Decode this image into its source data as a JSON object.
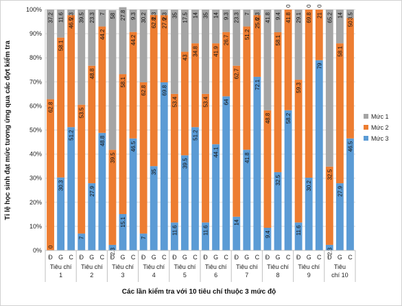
{
  "chart_data": {
    "type": "bar",
    "stacked": true,
    "ylabel": "Tỉ lệ học sinh đạt mức tương ứng qua các đợt kiểm tra",
    "xlabel": "Các lần kiểm tra với 10 tiêu chí thuộc 3 mức độ",
    "ylim": [
      0,
      100
    ],
    "y_ticks": [
      "0%",
      "10%",
      "20%",
      "30%",
      "40%",
      "50%",
      "60%",
      "70%",
      "80%",
      "90%",
      "100%"
    ],
    "grid": true,
    "legend_position": "right",
    "categories": [
      "Đ",
      "G",
      "C",
      "Đ",
      "G",
      "C",
      "Đ",
      "G",
      "C",
      "Đ",
      "G",
      "C",
      "Đ",
      "G",
      "C",
      "Đ",
      "G",
      "C",
      "Đ",
      "G",
      "C",
      "Đ",
      "G",
      "C",
      "Đ",
      "G",
      "C",
      "Đ",
      "G",
      "C"
    ],
    "groups": [
      {
        "line1": "Tiêu chí",
        "line2": "1"
      },
      {
        "line1": "Tiêu chí",
        "line2": "2"
      },
      {
        "line1": "Tiêu chí",
        "line2": "3"
      },
      {
        "line1": "Tiêu chí",
        "line2": "4"
      },
      {
        "line1": "Tiêu chí",
        "line2": "5"
      },
      {
        "line1": "Tiêu chí",
        "line2": "6"
      },
      {
        "line1": "Tiêu chí",
        "line2": "7"
      },
      {
        "line1": "Tiêu chí",
        "line2": "8"
      },
      {
        "line1": "Tiêu chí",
        "line2": "9"
      },
      {
        "line1": "Tiêu",
        "line2": "chí 10"
      }
    ],
    "series": [
      {
        "name": "Mức 3",
        "color": "#5b9bd5",
        "values": [
          0,
          30.3,
          51.2,
          7,
          27.9,
          48.8,
          2.3,
          15.1,
          46.5,
          7,
          35,
          69.8,
          11.6,
          39.5,
          51.2,
          11.6,
          44.1,
          64,
          14,
          41.8,
          72.1,
          9.4,
          32.5,
          58.2,
          11.6,
          30.2,
          79,
          2.3,
          27.9,
          46.5
        ],
        "labels": [
          "0",
          "30.3",
          "51.2",
          "7",
          "27.9",
          "48.8",
          "2.3",
          "15.1",
          "46.5",
          "7",
          "35",
          "69.8",
          "11.6",
          "39.5",
          "51.2",
          "11.6",
          "44.1",
          "64",
          "14",
          "41.8",
          "72.1",
          "9.4",
          "32.5",
          "58.2",
          "11.6",
          "30.2",
          "79",
          "2.3",
          "27.9",
          "46.5"
        ]
      },
      {
        "name": "Mức 2",
        "color": "#ed7d31",
        "values": [
          62.8,
          58.1,
          46.5,
          53.5,
          48.8,
          44.2,
          39.5,
          58.1,
          44.2,
          62.8,
          62.8,
          27.9,
          53.4,
          43,
          34.8,
          53.4,
          41.9,
          26.7,
          62.7,
          51.2,
          25.6,
          48.8,
          58.1,
          41.8,
          59.3,
          69.8,
          21,
          32.5,
          58.1,
          50
        ],
        "labels": [
          "62.8",
          "58.1",
          "46.5",
          "53.5",
          "48.8",
          "44.2",
          "39.5",
          "58.1",
          "44.2",
          "62.8",
          "62.8",
          "27.9",
          "53.4",
          "43",
          "34.8",
          "53.4",
          "41.9",
          "26.7",
          "62.7",
          "51.2",
          "25.6",
          "48.8",
          "58.1",
          "41.8",
          "59.3",
          "69.8",
          "21",
          "32.5",
          "58.1",
          "50"
        ]
      },
      {
        "name": "Mức 1",
        "color": "#a5a5a5",
        "values": [
          37.2,
          11.6,
          2.3,
          39.5,
          23.3,
          7,
          58,
          27.8,
          9.3,
          30.2,
          2.3,
          2.3,
          35,
          17.5,
          14,
          35,
          14,
          9.3,
          23.3,
          7,
          2.3,
          41.8,
          9.4,
          0,
          29.1,
          0,
          0,
          65.2,
          14,
          3.5
        ],
        "labels": [
          "37.2",
          "11.6",
          "2.3",
          "39.5",
          "23.3",
          "7",
          "58",
          "27.8",
          "9.3",
          "30.2",
          "2.3",
          "2.3",
          "35",
          "17.5",
          "14",
          "35",
          "14",
          "9.3",
          "23.3",
          "7",
          "2.3",
          "41.8",
          "9.4",
          "0",
          "29.1",
          "0",
          "0",
          "65.2",
          "14",
          "3.5"
        ]
      }
    ],
    "legend": [
      {
        "name": "Mức 1",
        "color": "#a5a5a5"
      },
      {
        "name": "Mức 2",
        "color": "#ed7d31"
      },
      {
        "name": "Mức 3",
        "color": "#5b9bd5"
      }
    ]
  }
}
